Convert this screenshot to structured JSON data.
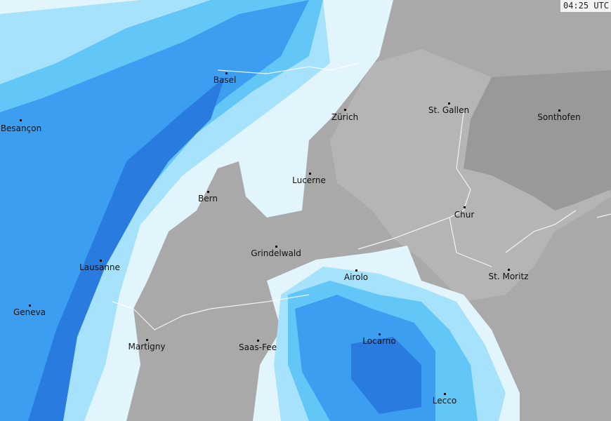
{
  "timestamp": "04:25 UTC",
  "colors": {
    "land": "#a9a9a9",
    "land_light": "#b5b5b5",
    "land_dark": "#999999",
    "precip_very_light": "#e2f5fd",
    "precip_light": "#a6e2fc",
    "precip_moderate": "#62c6f7",
    "precip_heavy": "#3c9ef0",
    "precip_very_heavy": "#2a7be0"
  },
  "cities": [
    {
      "name": "Basel"
    },
    {
      "name": "Besançon"
    },
    {
      "name": "Zürich"
    },
    {
      "name": "St. Gallen"
    },
    {
      "name": "Sonthofen"
    },
    {
      "name": "Lucerne"
    },
    {
      "name": "Bern"
    },
    {
      "name": "Chur"
    },
    {
      "name": "Grindelwald"
    },
    {
      "name": "Lausanne"
    },
    {
      "name": "Airolo"
    },
    {
      "name": "St. Moritz"
    },
    {
      "name": "Geneva"
    },
    {
      "name": "Martigny"
    },
    {
      "name": "Saas-Fee"
    },
    {
      "name": "Locarno"
    },
    {
      "name": "Lecco"
    }
  ]
}
